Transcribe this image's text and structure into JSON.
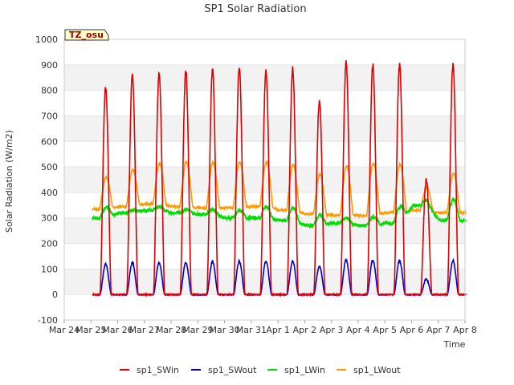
{
  "chart_data": {
    "type": "line",
    "title": "SP1 Solar Radiation",
    "xlabel": "Time",
    "ylabel": "Solar Radiation (W/m2)",
    "ylim": [
      -100,
      1000
    ],
    "yticks": [
      -100,
      0,
      100,
      200,
      300,
      400,
      500,
      600,
      700,
      800,
      900,
      1000
    ],
    "xlim": [
      0,
      15
    ],
    "xticks": [
      "Mar 24",
      "Mar 25",
      "Mar 26",
      "Mar 27",
      "Mar 28",
      "Mar 29",
      "Mar 30",
      "Mar 31",
      "Apr 1",
      "Apr 2",
      "Apr 3",
      "Apr 4",
      "Apr 5",
      "Apr 6",
      "Apr 7",
      "Apr 8"
    ],
    "annotation": "TZ_osu",
    "grid": "horizontal bands",
    "legend_position": "bottom",
    "series": [
      {
        "name": "sp1_SWin",
        "color": "#dd0000",
        "daily_peaks": [
          810,
          860,
          865,
          875,
          880,
          890,
          880,
          885,
          760,
          910,
          900,
          905,
          450,
          900
        ]
      },
      {
        "name": "sp1_SWout",
        "color": "#0000cc",
        "daily_peaks": [
          120,
          125,
          125,
          125,
          128,
          130,
          130,
          132,
          110,
          135,
          135,
          133,
          60,
          132
        ]
      },
      {
        "name": "sp1_LWin",
        "color": "#00dd00",
        "night_values": [
          300,
          320,
          330,
          320,
          315,
          300,
          300,
          290,
          270,
          280,
          270,
          280,
          350,
          290
        ],
        "day_values": [
          340,
          330,
          345,
          335,
          335,
          330,
          345,
          340,
          310,
          300,
          305,
          340,
          370,
          370
        ]
      },
      {
        "name": "sp1_LWout",
        "color": "#ff9900",
        "night_values": [
          335,
          345,
          355,
          345,
          340,
          340,
          345,
          330,
          315,
          310,
          310,
          320,
          330,
          320
        ],
        "day_values": [
          460,
          490,
          515,
          518,
          518,
          520,
          520,
          510,
          470,
          505,
          515,
          510,
          420,
          475
        ]
      }
    ]
  }
}
